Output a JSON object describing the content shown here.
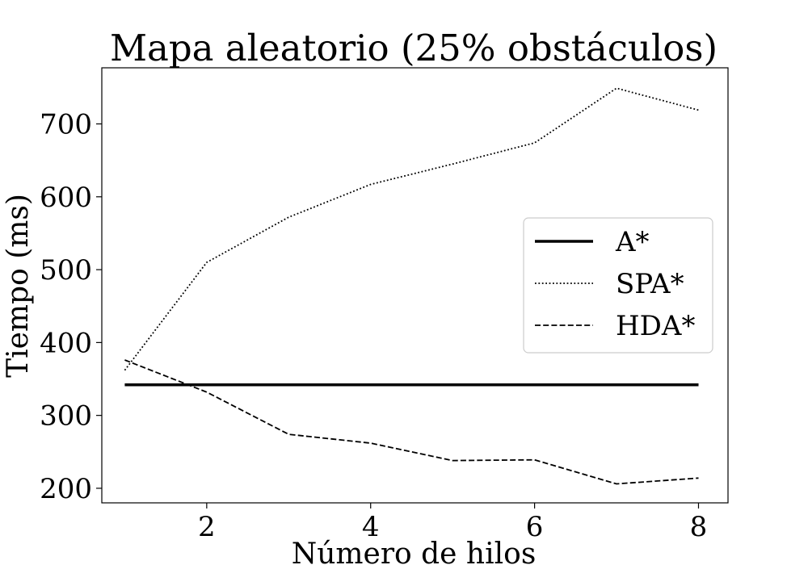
{
  "chart_data": {
    "type": "line",
    "title": "Mapa aleatorio (25% obstáculos)",
    "xlabel": "Número de hilos",
    "ylabel": "Tiempo (ms)",
    "x": [
      1,
      2,
      3,
      4,
      5,
      6,
      7,
      8
    ],
    "xlim": [
      0.72,
      8.36
    ],
    "ylim": [
      180,
      777
    ],
    "xticks": [
      2,
      4,
      6,
      8
    ],
    "yticks": [
      200,
      300,
      400,
      500,
      600,
      700
    ],
    "grid": false,
    "legend_position": "center-right",
    "series": [
      {
        "name": "A*",
        "style": "solid",
        "color": "#000000",
        "values": [
          342,
          342,
          342,
          342,
          342,
          342,
          342,
          342
        ]
      },
      {
        "name": "SPA*",
        "style": "dotted",
        "color": "#000000",
        "values": [
          362,
          510,
          572,
          617,
          645,
          674,
          749,
          719
        ]
      },
      {
        "name": "HDA*",
        "style": "dashed",
        "color": "#000000",
        "values": [
          376,
          332,
          274,
          262,
          238,
          239,
          206,
          214
        ]
      }
    ]
  }
}
